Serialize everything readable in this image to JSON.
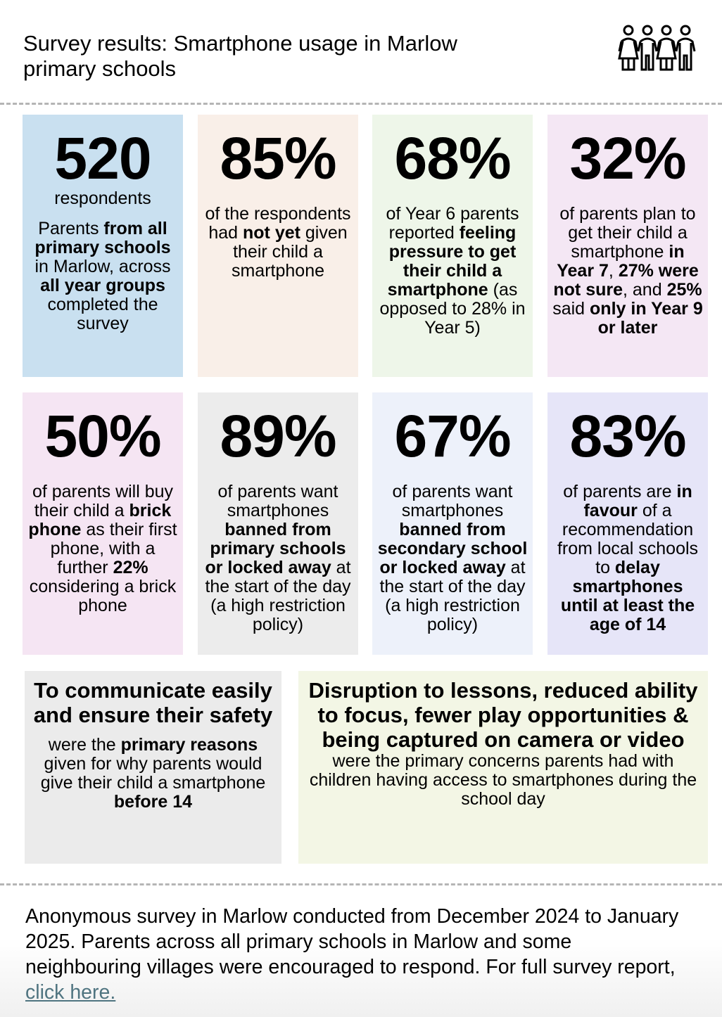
{
  "header": {
    "title": "Survey results: Smartphone usage in Marlow primary schools",
    "icon": "family-group-icon"
  },
  "stats": [
    {
      "bg": "#c9e0f0",
      "value": "520",
      "sub": "respondents",
      "text": [
        {
          "t": "Parents "
        },
        {
          "t": "from all primary schools",
          "b": 1
        },
        {
          "t": " in Marlow, across "
        },
        {
          "t": "all year groups",
          "b": 1
        },
        {
          "t": " completed the survey"
        }
      ]
    },
    {
      "bg": "#f9efe8",
      "value": "85%",
      "text": [
        {
          "t": "of the respondents had "
        },
        {
          "t": "not yet",
          "b": 1
        },
        {
          "t": " given their child a smartphone"
        }
      ]
    },
    {
      "bg": "#eef6e9",
      "value": "68%",
      "text": [
        {
          "t": "of Year 6 parents reported "
        },
        {
          "t": "feeling pressure to get their child a smartphone",
          "b": 1
        },
        {
          "t": " (as opposed to 28% in Year 5)"
        }
      ]
    },
    {
      "bg": "#f4e7f4",
      "value": "32%",
      "text": [
        {
          "t": "of parents plan to get their child a smartphone "
        },
        {
          "t": "in Year 7",
          "b": 1
        },
        {
          "t": ", "
        },
        {
          "t": "27% were not sure",
          "b": 1
        },
        {
          "t": ", and "
        },
        {
          "t": "25%",
          "b": 1
        },
        {
          "t": " said "
        },
        {
          "t": "only in Year 9 or later",
          "b": 1
        }
      ]
    },
    {
      "bg": "#f5e5f3",
      "value": "50%",
      "text": [
        {
          "t": "of parents will buy their child a "
        },
        {
          "t": "brick phone",
          "b": 1
        },
        {
          "t": " as their first phone, with a further "
        },
        {
          "t": "22%",
          "b": 1
        },
        {
          "t": " considering a brick phone"
        }
      ]
    },
    {
      "bg": "#ececec",
      "value": "89%",
      "text": [
        {
          "t": "of parents want smartphones "
        },
        {
          "t": "banned from primary schools or locked away",
          "b": 1
        },
        {
          "t": " at the start of the day (a high restriction policy)"
        }
      ]
    },
    {
      "bg": "#edf1fa",
      "value": "67%",
      "text": [
        {
          "t": "of parents want smartphones "
        },
        {
          "t": "banned from secondary school or locked away",
          "b": 1
        },
        {
          "t": " at the start of the day (a high restriction policy)"
        }
      ]
    },
    {
      "bg": "#e6e5f8",
      "value": "83%",
      "text": [
        {
          "t": "of parents are "
        },
        {
          "t": "in favour",
          "b": 1
        },
        {
          "t": " of a recommendation from local schools to "
        },
        {
          "t": "delay smartphones until at least the age of 14",
          "b": 1
        }
      ]
    }
  ],
  "reasons": {
    "bg": "#ebebeb",
    "heading": "To communicate easily and ensure their safety",
    "text": [
      {
        "t": "were the "
      },
      {
        "t": "primary reasons",
        "b": 1
      },
      {
        "t": " given for why parents would give their child a smartphone "
      },
      {
        "t": "before 14",
        "b": 1
      }
    ]
  },
  "concerns": {
    "bg": "#f3f6e5",
    "heading": "Disruption to lessons, reduced ability to focus, fewer play opportunities & being captured on camera or video",
    "text": [
      {
        "t": "were the primary concerns parents had with children having access to smartphones during the school day"
      }
    ]
  },
  "footer": {
    "text": "Anonymous survey in Marlow conducted from December 2024 to January 2025. Parents across all primary schools in Marlow and some neighbouring villages were encouraged to respond. For full survey report, ",
    "link": "click here.",
    "link_color": "#4f7480"
  }
}
